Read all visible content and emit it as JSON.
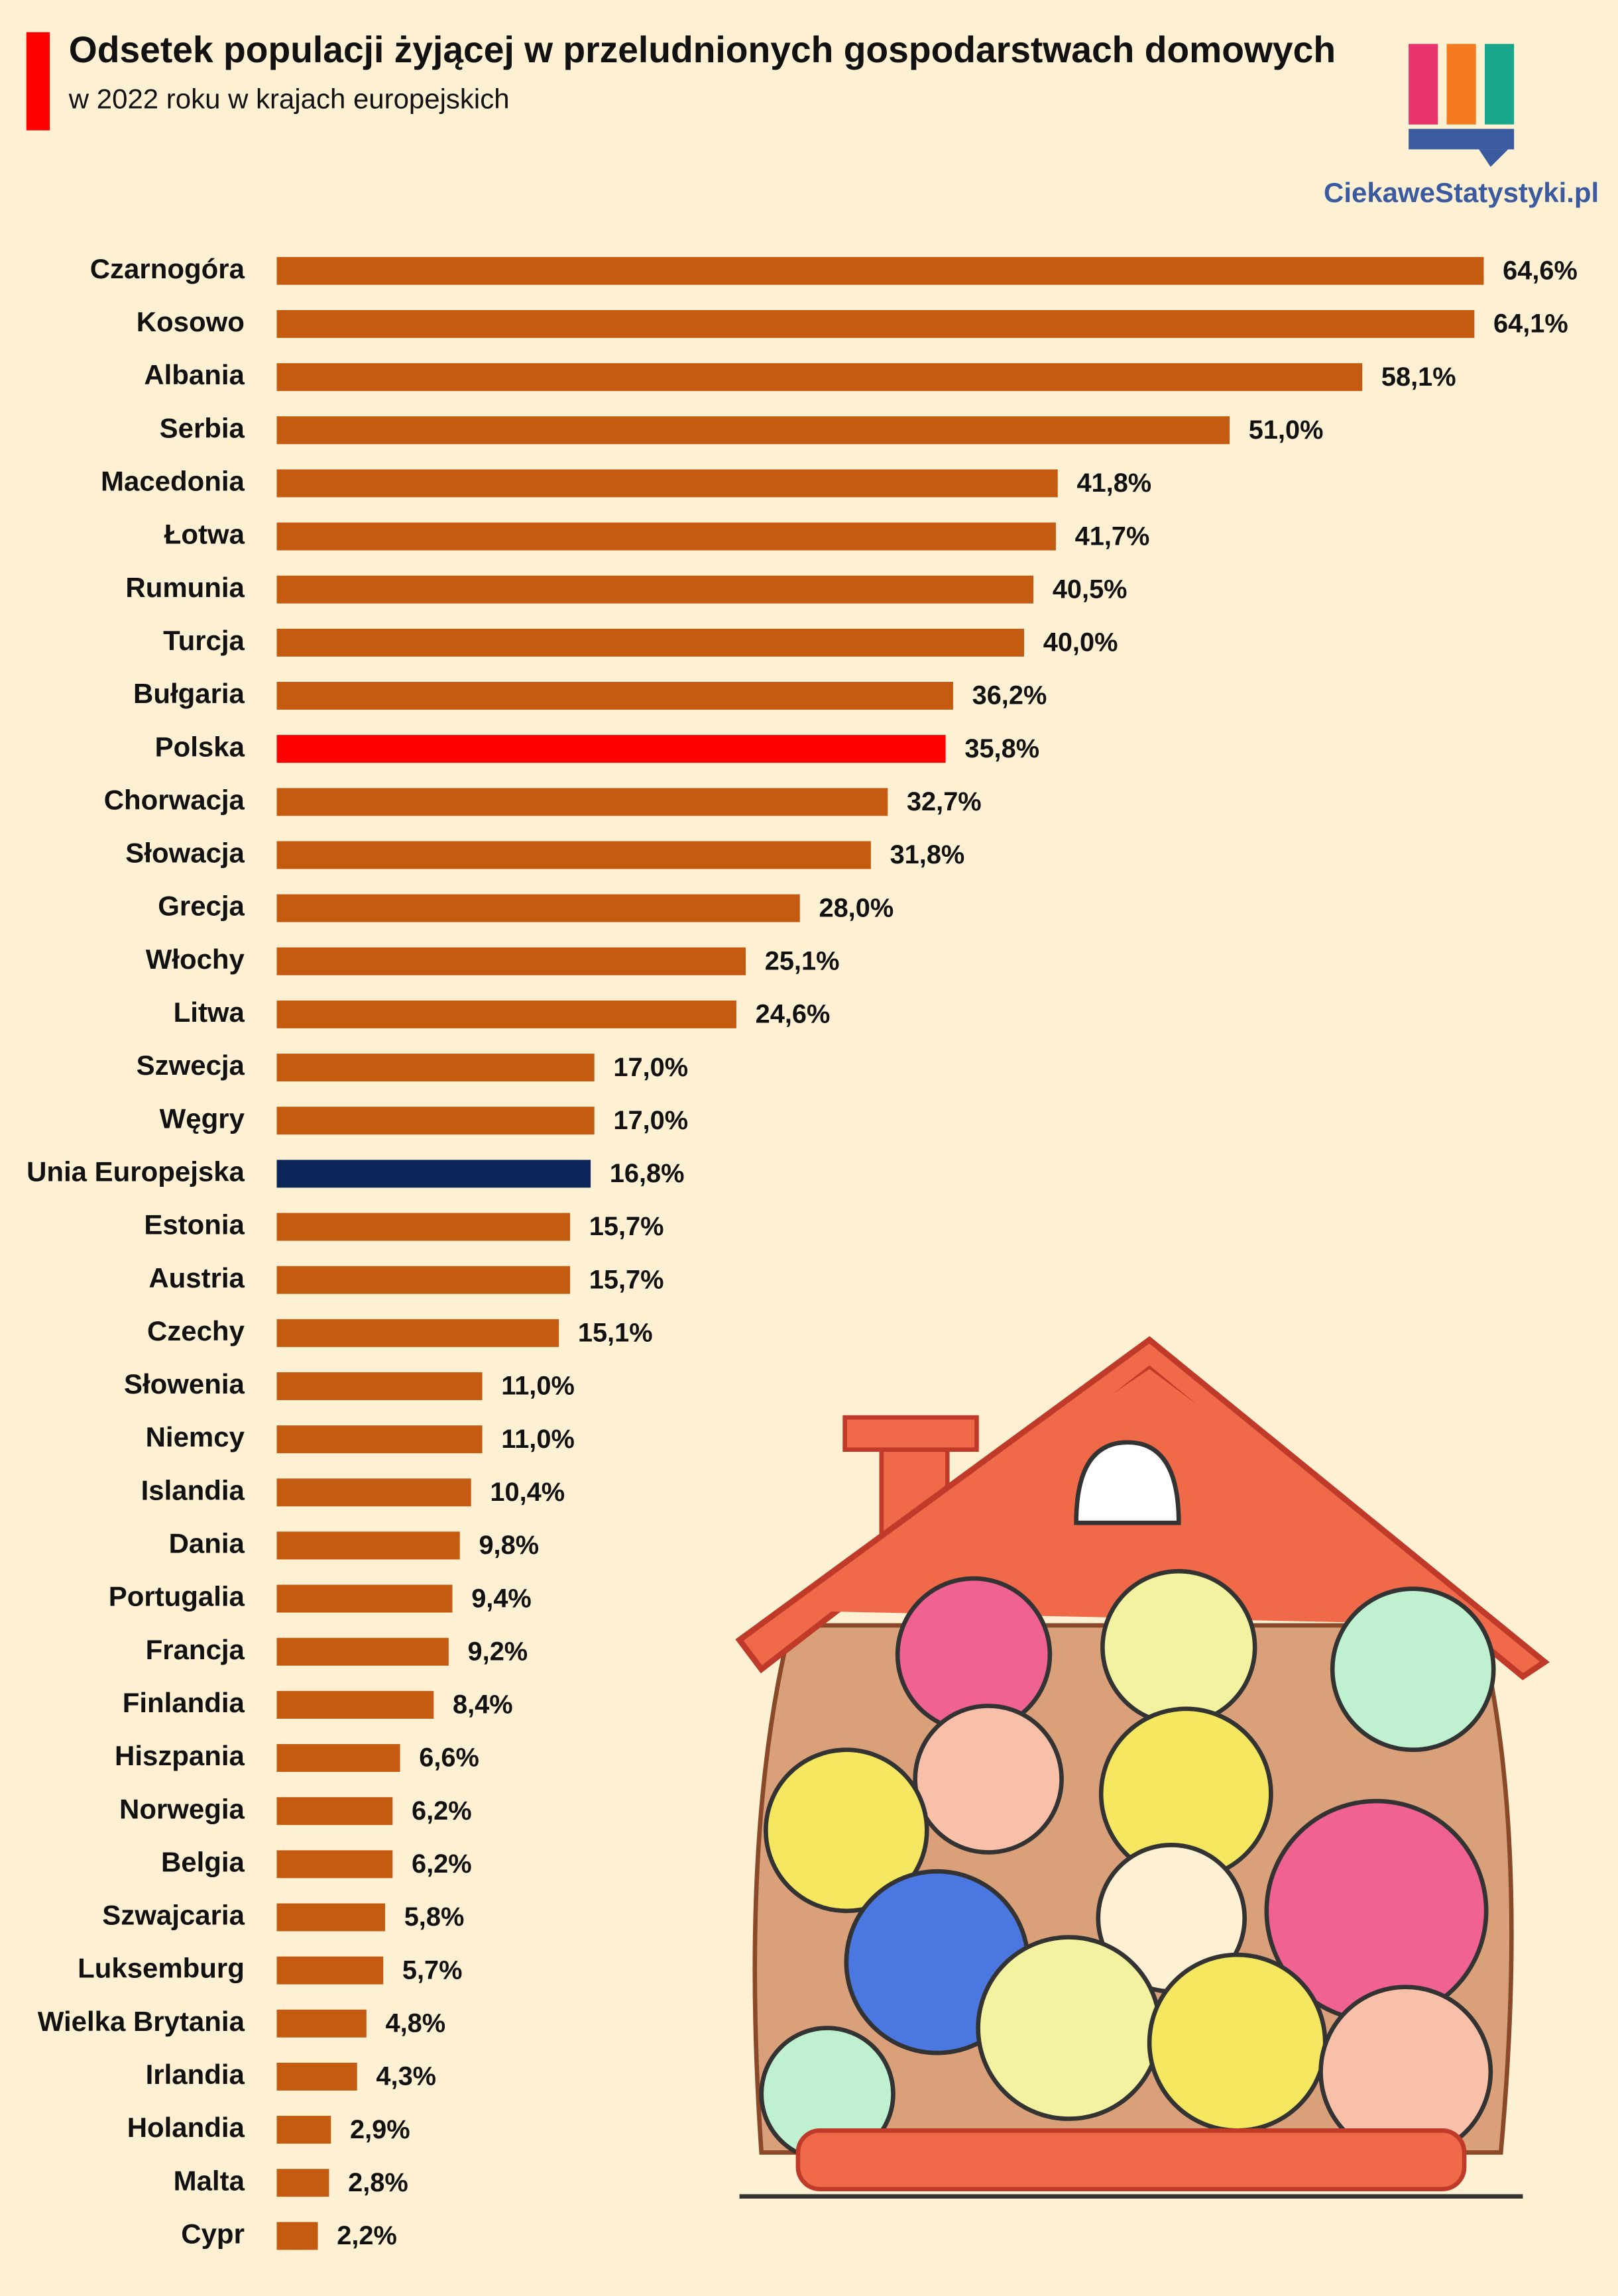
{
  "chart_data": {
    "type": "hbar",
    "title": "Odsetek populacji żyjącej w przeludnionych gospodarstwach domowych",
    "subtitle": "w 2022 roku w krajach europejskich",
    "categories": [
      "Czarnogóra",
      "Kosowo",
      "Albania",
      "Serbia",
      "Macedonia",
      "Łotwa",
      "Rumunia",
      "Turcja",
      "Bułgaria",
      "Polska",
      "Chorwacja",
      "Słowacja",
      "Grecja",
      "Włochy",
      "Litwa",
      "Szwecja",
      "Węgry",
      "Unia Europejska",
      "Estonia",
      "Austria",
      "Czechy",
      "Słowenia",
      "Niemcy",
      "Islandia",
      "Dania",
      "Portugalia",
      "Francja",
      "Finlandia",
      "Hiszpania",
      "Norwegia",
      "Belgia",
      "Szwajcaria",
      "Luksemburg",
      "Wielka Brytania",
      "Irlandia",
      "Holandia",
      "Malta",
      "Cypr"
    ],
    "values": [
      64.6,
      64.1,
      58.1,
      51.0,
      41.8,
      41.7,
      40.5,
      40.0,
      36.2,
      35.8,
      32.7,
      31.8,
      28.0,
      25.1,
      24.6,
      17.0,
      17.0,
      16.8,
      15.7,
      15.7,
      15.1,
      11.0,
      11.0,
      10.4,
      9.8,
      9.4,
      9.2,
      8.4,
      6.6,
      6.2,
      6.2,
      5.8,
      5.7,
      4.8,
      4.3,
      2.9,
      2.8,
      2.2
    ],
    "value_labels": [
      "64,6%",
      "64,1%",
      "58,1%",
      "51,0%",
      "41,8%",
      "41,7%",
      "40,5%",
      "40,0%",
      "36,2%",
      "35,8%",
      "32,7%",
      "31,8%",
      "28,0%",
      "25,1%",
      "24,6%",
      "17,0%",
      "17,0%",
      "16,8%",
      "15,7%",
      "15,7%",
      "15,1%",
      "11,0%",
      "11,0%",
      "10,4%",
      "9,8%",
      "9,4%",
      "9,2%",
      "8,4%",
      "6,6%",
      "6,2%",
      "6,2%",
      "5,8%",
      "5,7%",
      "4,8%",
      "4,3%",
      "2,9%",
      "2,8%",
      "2,2%"
    ],
    "colors": [
      "#c55a11",
      "#c55a11",
      "#c55a11",
      "#c55a11",
      "#c55a11",
      "#c55a11",
      "#c55a11",
      "#c55a11",
      "#c55a11",
      "#ff0000",
      "#c55a11",
      "#c55a11",
      "#c55a11",
      "#c55a11",
      "#c55a11",
      "#c55a11",
      "#c55a11",
      "#0b2559",
      "#c55a11",
      "#c55a11",
      "#c55a11",
      "#c55a11",
      "#c55a11",
      "#c55a11",
      "#c55a11",
      "#c55a11",
      "#c55a11",
      "#c55a11",
      "#c55a11",
      "#c55a11",
      "#c55a11",
      "#c55a11",
      "#c55a11",
      "#c55a11",
      "#c55a11",
      "#c55a11",
      "#c55a11",
      "#c55a11"
    ]
  },
  "logo": "CiekaweStatystyki.pl"
}
